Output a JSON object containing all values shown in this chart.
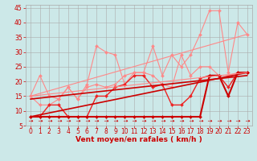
{
  "background_color": "#cce8e8",
  "grid_color": "#aaaaaa",
  "xlabel": "Vent moyen/en rafales ( km/h )",
  "xlabel_color": "#cc0000",
  "xlabel_fontsize": 6.5,
  "tick_color": "#cc0000",
  "tick_fontsize": 5.5,
  "xlim": [
    -0.5,
    23.5
  ],
  "ylim": [
    5,
    46
  ],
  "yticks": [
    5,
    10,
    15,
    20,
    25,
    30,
    35,
    40,
    45
  ],
  "xticks": [
    0,
    1,
    2,
    3,
    4,
    5,
    6,
    7,
    8,
    9,
    10,
    11,
    12,
    13,
    14,
    15,
    16,
    17,
    18,
    19,
    20,
    21,
    22,
    23
  ],
  "series": [
    {
      "x": [
        0,
        1,
        2,
        3,
        4,
        5,
        6,
        7,
        8,
        9,
        10,
        11,
        12,
        13,
        14,
        15,
        16,
        17,
        18,
        19,
        20,
        21,
        22,
        23
      ],
      "y": [
        15,
        22,
        15,
        14,
        18,
        14,
        19,
        32,
        30,
        29,
        19,
        23,
        23,
        32,
        22,
        29,
        25,
        29,
        36,
        44,
        44,
        23,
        40,
        36
      ],
      "color": "#ff8888",
      "lw": 0.8,
      "marker": "D",
      "ms": 2.0
    },
    {
      "x": [
        0,
        1,
        2,
        3,
        4,
        5,
        6,
        7,
        8,
        9,
        10,
        11,
        12,
        13,
        14,
        15,
        16,
        17,
        18,
        19,
        20,
        21,
        22,
        23
      ],
      "y": [
        15,
        12,
        12,
        14,
        18,
        14,
        18,
        19,
        18,
        19,
        22,
        23,
        23,
        22,
        19,
        18,
        29,
        22,
        25,
        25,
        22,
        22,
        23,
        23
      ],
      "color": "#ff8888",
      "lw": 0.8,
      "marker": "D",
      "ms": 2.0
    },
    {
      "x": [
        0,
        1,
        2,
        3,
        4,
        5,
        6,
        7,
        8,
        9,
        10,
        11,
        12,
        13,
        14,
        15,
        16,
        17,
        18,
        19,
        20,
        21,
        22,
        23
      ],
      "y": [
        8,
        8,
        12,
        12,
        8,
        8,
        8,
        15,
        15,
        18,
        19,
        22,
        22,
        18,
        19,
        12,
        12,
        15,
        21,
        22,
        22,
        18,
        23,
        23
      ],
      "color": "#ee2222",
      "lw": 1.0,
      "marker": "D",
      "ms": 2.0
    },
    {
      "x": [
        0,
        1,
        2,
        3,
        4,
        5,
        6,
        7,
        8,
        9,
        10,
        11,
        12,
        13,
        14,
        15,
        16,
        17,
        18,
        19,
        20,
        21,
        22,
        23
      ],
      "y": [
        8,
        8,
        8,
        8,
        8,
        8,
        8,
        8,
        8,
        8,
        8,
        8,
        8,
        8,
        8,
        8,
        8,
        8,
        8,
        22,
        22,
        15,
        23,
        23
      ],
      "color": "#cc0000",
      "lw": 1.5,
      "marker": "D",
      "ms": 2.0
    },
    {
      "x": [
        0,
        23
      ],
      "y": [
        8,
        23
      ],
      "color": "#cc0000",
      "lw": 1.2,
      "marker": null,
      "ms": 0
    },
    {
      "x": [
        0,
        23
      ],
      "y": [
        14,
        22
      ],
      "color": "#cc0000",
      "lw": 1.2,
      "marker": null,
      "ms": 0
    },
    {
      "x": [
        0,
        23
      ],
      "y": [
        15,
        36
      ],
      "color": "#ff8888",
      "lw": 0.8,
      "marker": null,
      "ms": 0
    },
    {
      "x": [
        0,
        23
      ],
      "y": [
        15,
        23
      ],
      "color": "#ff8888",
      "lw": 0.8,
      "marker": null,
      "ms": 0
    }
  ],
  "arrow_color": "#cc0000",
  "arrow_char": "➜"
}
